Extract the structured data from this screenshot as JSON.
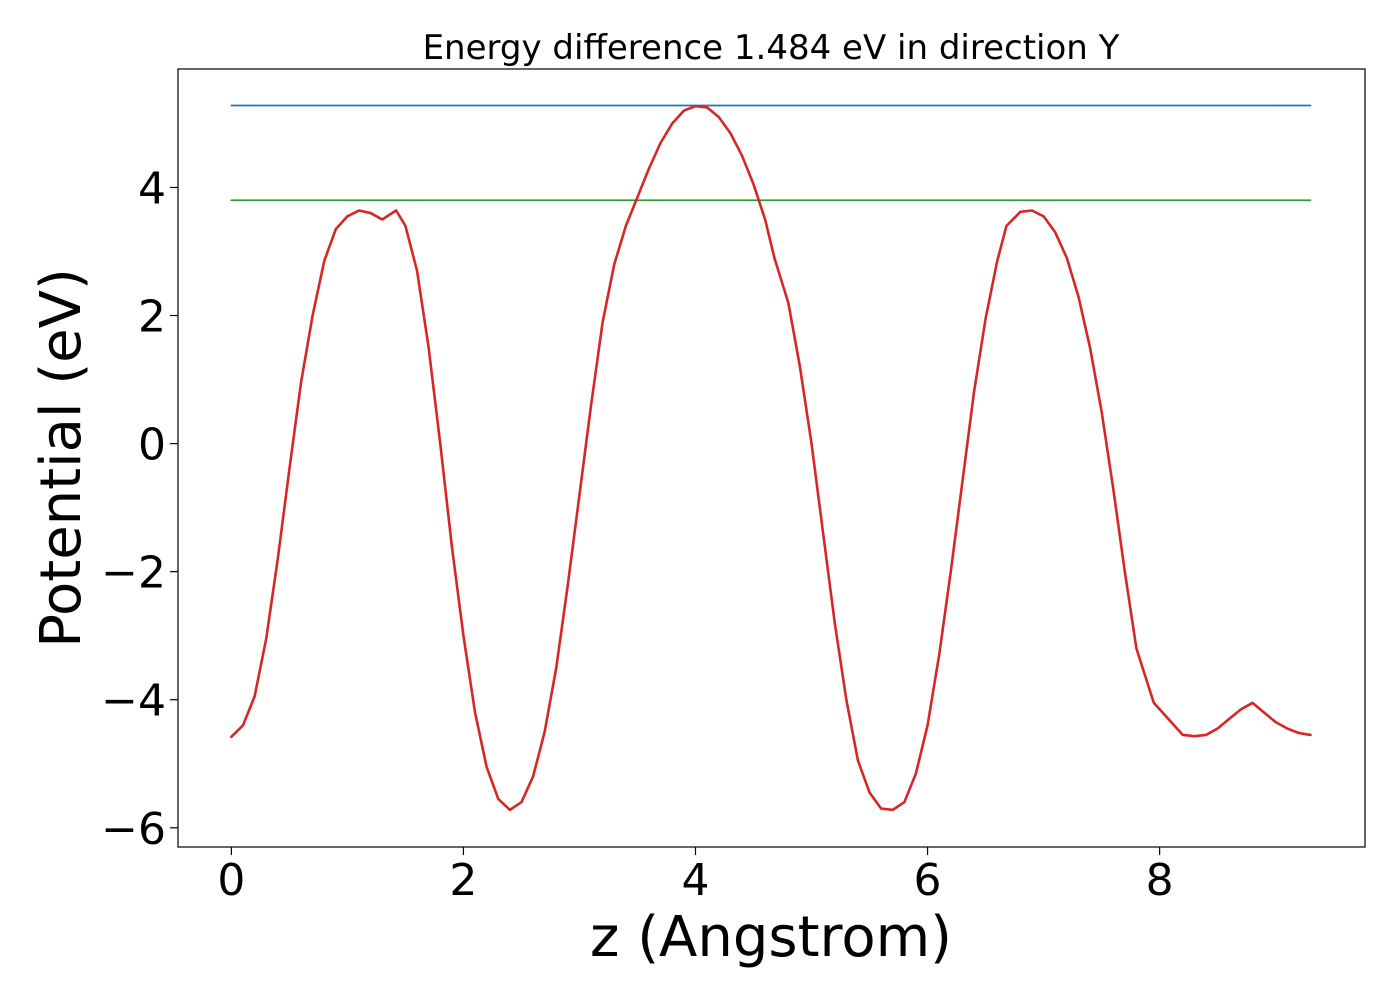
{
  "chart_data": {
    "type": "line",
    "title": "Energy difference 1.484 eV in direction Y",
    "xlabel": "z (Angstrom)",
    "ylabel": "Potential (eV)",
    "xlim": [
      -0.46,
      9.77
    ],
    "ylim": [
      -6.3,
      5.85
    ],
    "xticks": [
      0,
      2,
      4,
      6,
      8
    ],
    "xtick_labels": [
      "0",
      "2",
      "4",
      "6",
      "8"
    ],
    "yticks": [
      -6,
      -4,
      -2,
      0,
      2,
      4
    ],
    "ytick_labels": [
      "−6",
      "−4",
      "−2",
      "0",
      "2",
      "4"
    ],
    "grid": false,
    "series": [
      {
        "color": "#1f77b4",
        "x": [
          0,
          9.3
        ],
        "y": [
          5.28,
          5.28
        ]
      },
      {
        "color": "#2ca02c",
        "x": [
          0,
          9.3
        ],
        "y": [
          3.8,
          3.8
        ]
      },
      {
        "color": "#d62728",
        "x": [
          0,
          0.1,
          0.2,
          0.3,
          0.4,
          0.5,
          0.6,
          0.7,
          0.8,
          0.9,
          1.0,
          1.1,
          1.2,
          1.3,
          1.42,
          1.5,
          1.6,
          1.7,
          1.8,
          1.9,
          2.0,
          2.1,
          2.2,
          2.3,
          2.4,
          2.5,
          2.6,
          2.7,
          2.8,
          2.9,
          3.0,
          3.1,
          3.2,
          3.3,
          3.4,
          3.5,
          3.6,
          3.7,
          3.8,
          3.9,
          4.0,
          4.1,
          4.2,
          4.3,
          4.4,
          4.5,
          4.6,
          4.68,
          4.8,
          4.9,
          5.0,
          5.1,
          5.2,
          5.3,
          5.4,
          5.5,
          5.6,
          5.7,
          5.8,
          5.9,
          6.0,
          6.1,
          6.2,
          6.3,
          6.4,
          6.5,
          6.6,
          6.68,
          6.8,
          6.9,
          7.0,
          7.1,
          7.2,
          7.3,
          7.4,
          7.5,
          7.6,
          7.7,
          7.8,
          7.95,
          8.1,
          8.2,
          8.3,
          8.4,
          8.5,
          8.6,
          8.7,
          8.8,
          8.9,
          9.0,
          9.1,
          9.2,
          9.3
        ],
        "y": [
          -4.58,
          -4.4,
          -3.95,
          -3.05,
          -1.8,
          -0.4,
          0.95,
          2.0,
          2.85,
          3.35,
          3.55,
          3.64,
          3.6,
          3.5,
          3.64,
          3.4,
          2.7,
          1.5,
          0.0,
          -1.6,
          -3.0,
          -4.2,
          -5.05,
          -5.55,
          -5.72,
          -5.6,
          -5.2,
          -4.5,
          -3.5,
          -2.2,
          -0.8,
          0.6,
          1.9,
          2.8,
          3.4,
          3.85,
          4.3,
          4.7,
          5.0,
          5.2,
          5.27,
          5.25,
          5.1,
          4.85,
          4.5,
          4.05,
          3.5,
          2.9,
          2.2,
          1.2,
          0.0,
          -1.4,
          -2.8,
          -4.0,
          -4.95,
          -5.45,
          -5.7,
          -5.72,
          -5.6,
          -5.15,
          -4.4,
          -3.3,
          -2.0,
          -0.6,
          0.8,
          1.95,
          2.85,
          3.4,
          3.62,
          3.64,
          3.55,
          3.3,
          2.9,
          2.3,
          1.5,
          0.5,
          -0.7,
          -2.0,
          -3.2,
          -4.05,
          -4.35,
          -4.55,
          -4.57,
          -4.55,
          -4.45,
          -4.3,
          -4.15,
          -4.05,
          -4.2,
          -4.35,
          -4.45,
          -4.52,
          -4.55
        ]
      }
    ]
  }
}
